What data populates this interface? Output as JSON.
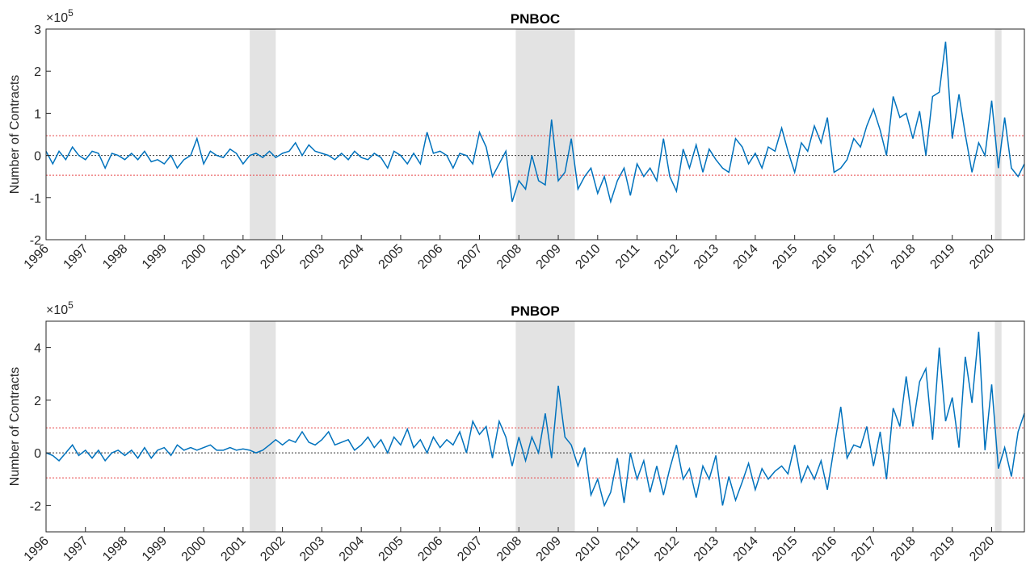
{
  "chart_data": [
    {
      "type": "line",
      "title": "PNBOC",
      "ylabel": "Number of Contracts",
      "y_exponent_base": "×10",
      "y_exponent": "5",
      "color": "#0072bd",
      "threshold_color": "#e8494b",
      "shade_color": "#e3e3e3",
      "xlim": [
        1996,
        2020.83
      ],
      "xticks": [
        1996,
        1997,
        1998,
        1999,
        2000,
        2001,
        2002,
        2003,
        2004,
        2005,
        2006,
        2007,
        2008,
        2009,
        2010,
        2011,
        2012,
        2013,
        2014,
        2015,
        2016,
        2017,
        2018,
        2019,
        2020
      ],
      "ylim": [
        -2,
        3
      ],
      "yticks": [
        -2,
        -1,
        0,
        1,
        2,
        3
      ],
      "thresholds": [
        0.47,
        -0.47
      ],
      "shaded_periods": [
        [
          2001.17,
          2001.83
        ],
        [
          2007.92,
          2009.42
        ],
        [
          2020.08,
          2020.25
        ]
      ],
      "x": [
        1996,
        1996.17,
        1996.33,
        1996.5,
        1996.67,
        1996.83,
        1997,
        1997.17,
        1997.33,
        1997.5,
        1997.67,
        1997.83,
        1998,
        1998.17,
        1998.33,
        1998.5,
        1998.67,
        1998.83,
        1999,
        1999.17,
        1999.33,
        1999.5,
        1999.67,
        1999.83,
        2000,
        2000.17,
        2000.33,
        2000.5,
        2000.67,
        2000.83,
        2001,
        2001.17,
        2001.33,
        2001.5,
        2001.67,
        2001.83,
        2002,
        2002.17,
        2002.33,
        2002.5,
        2002.67,
        2002.83,
        2003,
        2003.17,
        2003.33,
        2003.5,
        2003.67,
        2003.83,
        2004,
        2004.17,
        2004.33,
        2004.5,
        2004.67,
        2004.83,
        2005,
        2005.17,
        2005.33,
        2005.5,
        2005.67,
        2005.83,
        2006,
        2006.17,
        2006.33,
        2006.5,
        2006.67,
        2006.83,
        2007,
        2007.17,
        2007.33,
        2007.5,
        2007.67,
        2007.83,
        2008,
        2008.17,
        2008.33,
        2008.5,
        2008.67,
        2008.83,
        2009,
        2009.17,
        2009.33,
        2009.5,
        2009.67,
        2009.83,
        2010,
        2010.17,
        2010.33,
        2010.5,
        2010.67,
        2010.83,
        2011,
        2011.17,
        2011.33,
        2011.5,
        2011.67,
        2011.83,
        2012,
        2012.17,
        2012.33,
        2012.5,
        2012.67,
        2012.83,
        2013,
        2013.17,
        2013.33,
        2013.5,
        2013.67,
        2013.83,
        2014,
        2014.17,
        2014.33,
        2014.5,
        2014.67,
        2014.83,
        2015,
        2015.17,
        2015.33,
        2015.5,
        2015.67,
        2015.83,
        2016,
        2016.17,
        2016.33,
        2016.5,
        2016.67,
        2016.83,
        2017,
        2017.17,
        2017.33,
        2017.5,
        2017.67,
        2017.83,
        2018,
        2018.17,
        2018.33,
        2018.5,
        2018.67,
        2018.83,
        2019,
        2019.17,
        2019.33,
        2019.5,
        2019.67,
        2019.83,
        2020,
        2020.17,
        2020.33,
        2020.5,
        2020.67,
        2020.83
      ],
      "values": [
        0.1,
        -0.2,
        0.1,
        -0.1,
        0.2,
        0.0,
        -0.1,
        0.1,
        0.05,
        -0.3,
        0.05,
        0.0,
        -0.1,
        0.05,
        -0.1,
        0.1,
        -0.15,
        -0.1,
        -0.2,
        0.0,
        -0.3,
        -0.1,
        0.0,
        0.4,
        -0.2,
        0.1,
        0.0,
        -0.05,
        0.15,
        0.05,
        -0.2,
        0.0,
        0.05,
        -0.05,
        0.1,
        -0.05,
        0.05,
        0.1,
        0.3,
        0.0,
        0.25,
        0.1,
        0.05,
        0.0,
        -0.1,
        0.05,
        -0.1,
        0.1,
        -0.05,
        -0.1,
        0.05,
        -0.05,
        -0.3,
        0.1,
        0.0,
        -0.2,
        0.05,
        -0.2,
        0.55,
        0.05,
        0.1,
        0.0,
        -0.3,
        0.05,
        0.0,
        -0.2,
        0.55,
        0.2,
        -0.5,
        -0.2,
        0.1,
        -1.1,
        -0.6,
        -0.8,
        0.0,
        -0.6,
        -0.7,
        0.85,
        -0.6,
        -0.4,
        0.4,
        -0.8,
        -0.5,
        -0.3,
        -0.9,
        -0.5,
        -1.1,
        -0.6,
        -0.3,
        -0.95,
        -0.2,
        -0.5,
        -0.3,
        -0.6,
        0.4,
        -0.5,
        -0.85,
        0.15,
        -0.3,
        0.25,
        -0.4,
        0.15,
        -0.1,
        -0.3,
        -0.4,
        0.4,
        0.2,
        -0.2,
        0.05,
        -0.3,
        0.2,
        0.1,
        0.65,
        0.1,
        -0.4,
        0.3,
        0.1,
        0.7,
        0.3,
        0.9,
        -0.4,
        -0.3,
        -0.1,
        0.4,
        0.2,
        0.7,
        1.1,
        0.6,
        0.0,
        1.4,
        0.9,
        1.0,
        0.4,
        1.05,
        0.0,
        1.4,
        1.5,
        2.7,
        0.4,
        1.45,
        0.5,
        -0.4,
        0.3,
        0.0,
        1.3,
        -0.3,
        0.9,
        -0.3,
        -0.5,
        -0.2
      ]
    },
    {
      "type": "line",
      "title": "PNBOP",
      "ylabel": "Number of Contracts",
      "y_exponent_base": "×10",
      "y_exponent": "5",
      "color": "#0072bd",
      "threshold_color": "#e8494b",
      "shade_color": "#e3e3e3",
      "xlim": [
        1996,
        2020.83
      ],
      "xticks": [
        1996,
        1997,
        1998,
        1999,
        2000,
        2001,
        2002,
        2003,
        2004,
        2005,
        2006,
        2007,
        2008,
        2009,
        2010,
        2011,
        2012,
        2013,
        2014,
        2015,
        2016,
        2017,
        2018,
        2019,
        2020
      ],
      "ylim": [
        -3,
        5
      ],
      "yticks": [
        -2,
        0,
        2,
        4
      ],
      "thresholds": [
        0.95,
        -0.95
      ],
      "shaded_periods": [
        [
          2001.17,
          2001.83
        ],
        [
          2007.92,
          2009.42
        ],
        [
          2020.08,
          2020.25
        ]
      ],
      "x": [
        1996,
        1996.17,
        1996.33,
        1996.5,
        1996.67,
        1996.83,
        1997,
        1997.17,
        1997.33,
        1997.5,
        1997.67,
        1997.83,
        1998,
        1998.17,
        1998.33,
        1998.5,
        1998.67,
        1998.83,
        1999,
        1999.17,
        1999.33,
        1999.5,
        1999.67,
        1999.83,
        2000,
        2000.17,
        2000.33,
        2000.5,
        2000.67,
        2000.83,
        2001,
        2001.17,
        2001.33,
        2001.5,
        2001.67,
        2001.83,
        2002,
        2002.17,
        2002.33,
        2002.5,
        2002.67,
        2002.83,
        2003,
        2003.17,
        2003.33,
        2003.5,
        2003.67,
        2003.83,
        2004,
        2004.17,
        2004.33,
        2004.5,
        2004.67,
        2004.83,
        2005,
        2005.17,
        2005.33,
        2005.5,
        2005.67,
        2005.83,
        2006,
        2006.17,
        2006.33,
        2006.5,
        2006.67,
        2006.83,
        2007,
        2007.17,
        2007.33,
        2007.5,
        2007.67,
        2007.83,
        2008,
        2008.17,
        2008.33,
        2008.5,
        2008.67,
        2008.83,
        2009,
        2009.17,
        2009.33,
        2009.5,
        2009.67,
        2009.83,
        2010,
        2010.17,
        2010.33,
        2010.5,
        2010.67,
        2010.83,
        2011,
        2011.17,
        2011.33,
        2011.5,
        2011.67,
        2011.83,
        2012,
        2012.17,
        2012.33,
        2012.5,
        2012.67,
        2012.83,
        2013,
        2013.17,
        2013.33,
        2013.5,
        2013.67,
        2013.83,
        2014,
        2014.17,
        2014.33,
        2014.5,
        2014.67,
        2014.83,
        2015,
        2015.17,
        2015.33,
        2015.5,
        2015.67,
        2015.83,
        2016,
        2016.17,
        2016.33,
        2016.5,
        2016.67,
        2016.83,
        2017,
        2017.17,
        2017.33,
        2017.5,
        2017.67,
        2017.83,
        2018,
        2018.17,
        2018.33,
        2018.5,
        2018.67,
        2018.83,
        2019,
        2019.17,
        2019.33,
        2019.5,
        2019.67,
        2019.83,
        2020,
        2020.17,
        2020.33,
        2020.5,
        2020.67,
        2020.83
      ],
      "values": [
        0.0,
        -0.1,
        -0.3,
        0.0,
        0.3,
        -0.1,
        0.1,
        -0.2,
        0.1,
        -0.3,
        0.0,
        0.1,
        -0.1,
        0.1,
        -0.2,
        0.2,
        -0.2,
        0.1,
        0.2,
        -0.1,
        0.3,
        0.1,
        0.2,
        0.1,
        0.2,
        0.3,
        0.1,
        0.1,
        0.2,
        0.1,
        0.15,
        0.1,
        0.0,
        0.1,
        0.3,
        0.5,
        0.3,
        0.5,
        0.4,
        0.8,
        0.4,
        0.3,
        0.5,
        0.8,
        0.3,
        0.4,
        0.5,
        0.1,
        0.3,
        0.6,
        0.2,
        0.5,
        0.0,
        0.6,
        0.3,
        0.9,
        0.2,
        0.5,
        0.0,
        0.6,
        0.2,
        0.5,
        0.3,
        0.8,
        0.0,
        1.2,
        0.7,
        1.0,
        -0.2,
        1.2,
        0.6,
        -0.5,
        0.6,
        -0.3,
        0.6,
        0.0,
        1.5,
        -0.2,
        2.55,
        0.6,
        0.3,
        -0.5,
        0.2,
        -1.6,
        -1.0,
        -2.0,
        -1.5,
        -0.2,
        -1.9,
        0.0,
        -1.0,
        -0.3,
        -1.5,
        -0.5,
        -1.6,
        -0.6,
        0.3,
        -1.0,
        -0.6,
        -1.7,
        -0.5,
        -1.0,
        -0.1,
        -2.0,
        -0.9,
        -1.8,
        -1.1,
        -0.4,
        -1.4,
        -0.6,
        -1.0,
        -0.7,
        -0.5,
        -0.8,
        0.3,
        -1.1,
        -0.5,
        -1.0,
        -0.3,
        -1.4,
        0.2,
        1.75,
        -0.2,
        0.3,
        0.2,
        1.0,
        -0.5,
        0.8,
        -1.0,
        1.7,
        1.0,
        2.9,
        1.0,
        2.7,
        3.2,
        0.5,
        4.0,
        1.2,
        2.1,
        0.2,
        3.65,
        1.9,
        4.6,
        0.1,
        2.6,
        -0.6,
        0.2,
        -0.9,
        0.8,
        1.5
      ]
    }
  ]
}
